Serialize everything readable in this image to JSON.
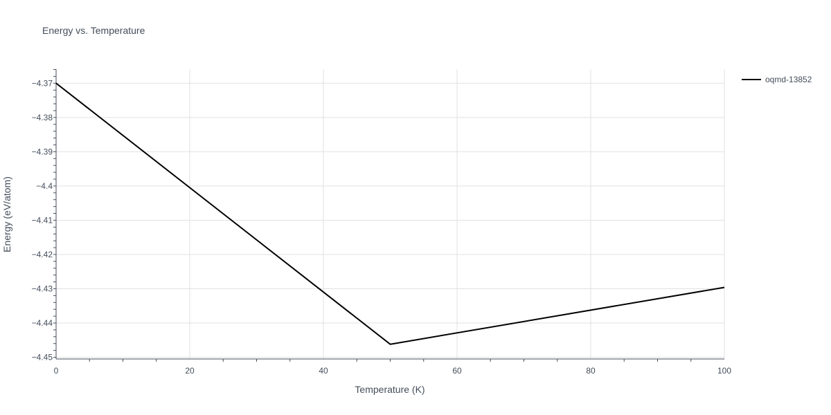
{
  "chart_data": {
    "type": "line",
    "title": "Energy vs. Temperature",
    "xlabel": "Temperature (K)",
    "ylabel": "Energy (eV/atom)",
    "xlim": [
      0,
      100
    ],
    "ylim": [
      -4.4505,
      -4.3659
    ],
    "x_ticks": [
      0,
      20,
      40,
      60,
      80,
      100
    ],
    "y_ticks": [
      -4.45,
      -4.44,
      -4.43,
      -4.42,
      -4.41,
      -4.4,
      -4.39,
      -4.38,
      -4.37
    ],
    "y_tick_labels": [
      "−4.45",
      "−4.44",
      "−4.43",
      "−4.42",
      "−4.41",
      "−4.4",
      "−4.39",
      "−4.38",
      "−4.37"
    ],
    "grid": true,
    "legend_position": "top-right",
    "series": [
      {
        "name": "oqmd-13852",
        "color": "#000000",
        "x": [
          0,
          50,
          100
        ],
        "y": [
          -4.37,
          -4.4462,
          -4.4296
        ]
      }
    ]
  }
}
